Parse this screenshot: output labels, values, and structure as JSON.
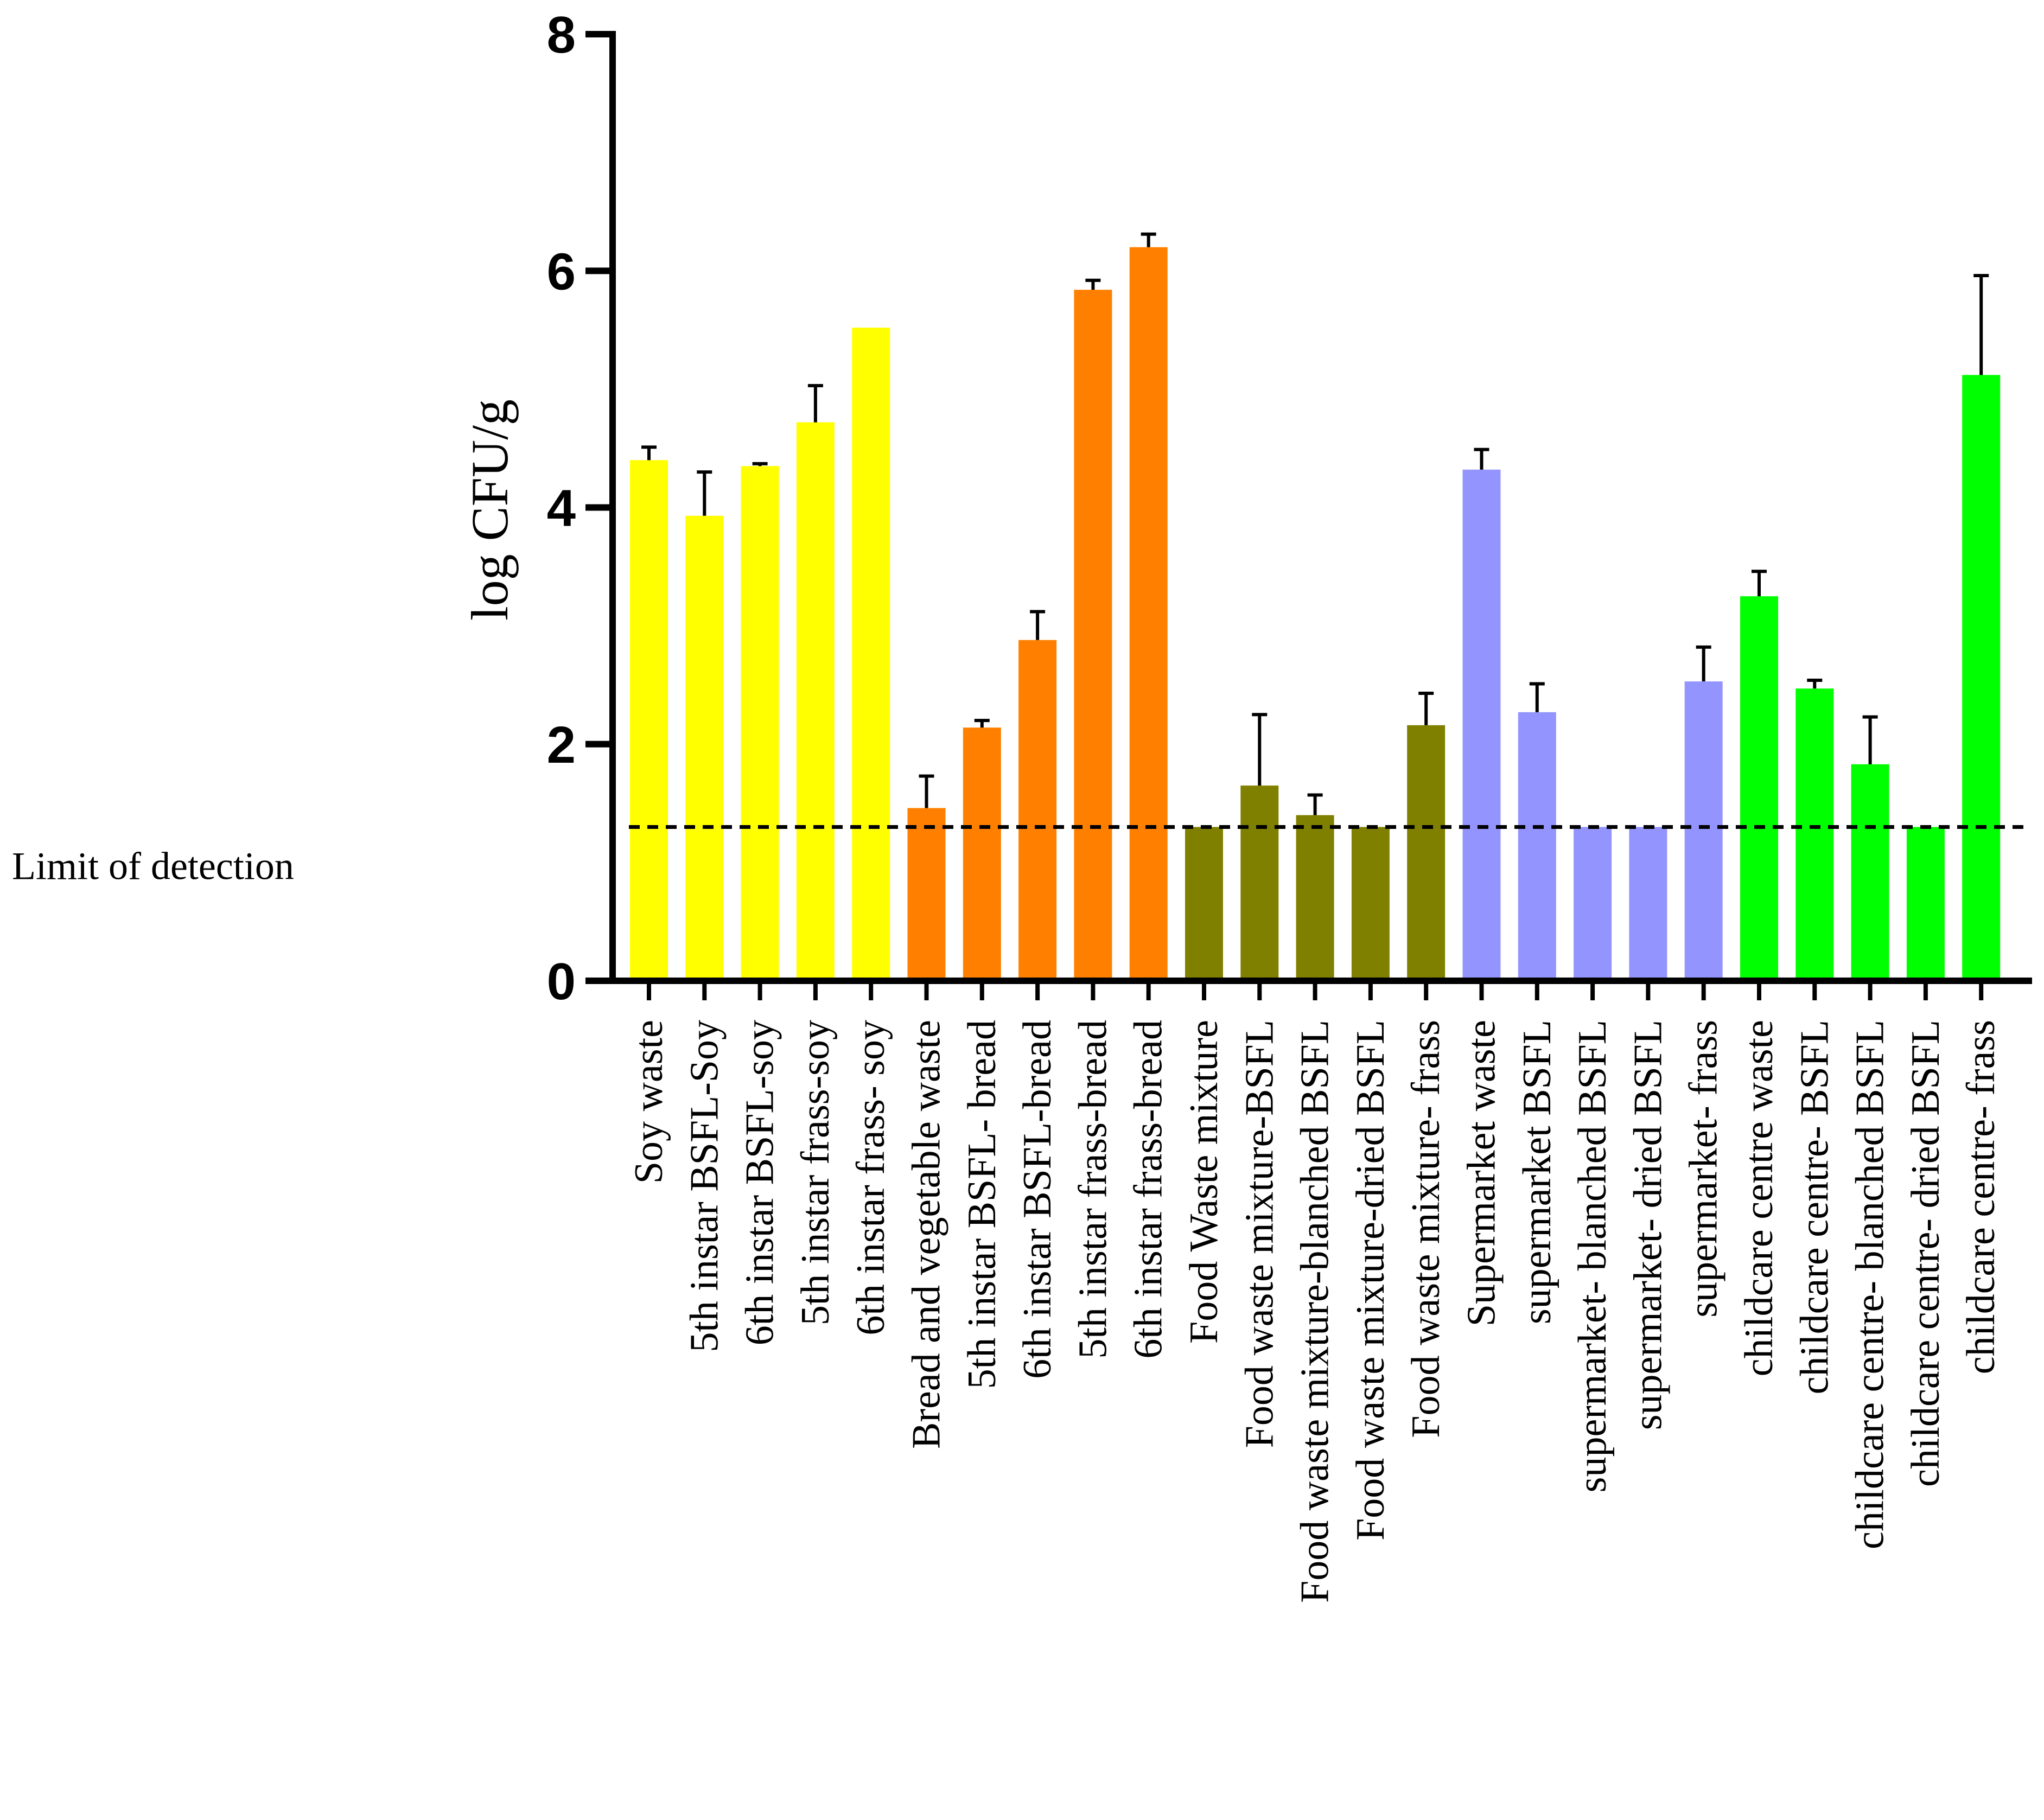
{
  "chart_data": {
    "type": "bar",
    "title": "",
    "xlabel": "",
    "ylabel": "log CFU/g",
    "ylim": [
      0,
      8
    ],
    "yticks": [
      0,
      2,
      4,
      6,
      8
    ],
    "ytick_labels": [
      "0",
      "2",
      "4",
      "6",
      "8"
    ],
    "grid": false,
    "legend": "none",
    "reference_line": {
      "label": "Limit of detection",
      "value": 1.3,
      "style": "dashed"
    },
    "categories": [
      "Soy waste",
      "5th instar BSFL-Soy",
      "6th instar BSFL-soy",
      "5th instar frass-soy",
      "6th instar frass- soy",
      "Bread and vegetable waste",
      "5th instar BSFL- bread",
      "6th instar BSFL-bread",
      "5th instar frass-bread",
      "6th instar frass-bread",
      "Food Waste mixture",
      "Food waste mixture-BSFL",
      "Food waste mixture-blanched BSFL",
      "Food waste mixture-dried BSFL",
      "Food waste mixture- frass",
      "Supermarket waste",
      "supermarket BSFL",
      "supermarket- blanched BSFL",
      "supermarket- dried BSFL",
      "supermarket- frass",
      "childcare centre waste",
      "childcare centre- BSFL",
      "childcare centre- blanched BSFL",
      "childcare centre- dried BSFL",
      "childcare centre- frass"
    ],
    "values": [
      4.4,
      3.93,
      4.35,
      4.72,
      5.52,
      1.46,
      2.14,
      2.88,
      5.84,
      6.2,
      1.3,
      1.65,
      1.4,
      1.3,
      2.16,
      4.32,
      2.27,
      1.3,
      1.3,
      2.53,
      3.25,
      2.47,
      1.83,
      1.3,
      5.12
    ],
    "errors": [
      0.11,
      0.37,
      0.02,
      0.31,
      0.0,
      0.27,
      0.06,
      0.24,
      0.08,
      0.11,
      0.0,
      0.6,
      0.17,
      0.0,
      0.27,
      0.17,
      0.24,
      0.0,
      0.0,
      0.29,
      0.21,
      0.07,
      0.4,
      0.0,
      0.84
    ],
    "bar_colors": [
      "#ffff00",
      "#ffff00",
      "#ffff00",
      "#ffff00",
      "#ffff00",
      "#ff8000",
      "#ff8000",
      "#ff8000",
      "#ff8000",
      "#ff8000",
      "#808000",
      "#808000",
      "#808000",
      "#808000",
      "#808000",
      "#9494ff",
      "#9494ff",
      "#9494ff",
      "#9494ff",
      "#9494ff",
      "#00ff00",
      "#00ff00",
      "#00ff00",
      "#00ff00",
      "#00ff00"
    ]
  }
}
